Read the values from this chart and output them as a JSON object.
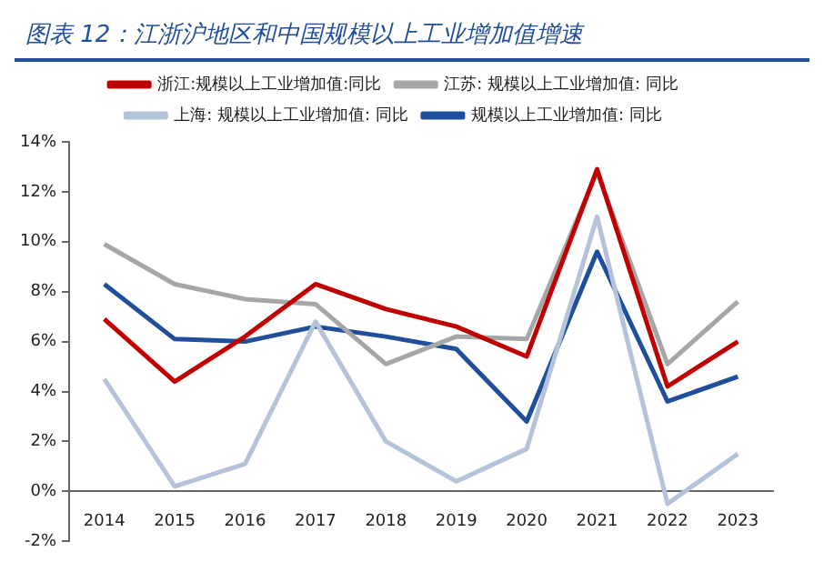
{
  "chart_data": {
    "type": "line",
    "title": "图表 12：江浙沪地区和中国规模以上工业增加值增速",
    "categories": [
      "2014",
      "2015",
      "2016",
      "2017",
      "2018",
      "2019",
      "2020",
      "2021",
      "2022",
      "2023"
    ],
    "series": [
      {
        "name": "浙江:规模以上工业增加值:同比",
        "color": "#c00000",
        "values": [
          6.9,
          4.4,
          6.2,
          8.3,
          7.3,
          6.6,
          5.4,
          12.9,
          4.2,
          6.0
        ]
      },
      {
        "name": "江苏: 规模以上工业增加值: 同比",
        "color": "#a6a6a6",
        "values": [
          9.9,
          8.3,
          7.7,
          7.5,
          5.1,
          6.2,
          6.1,
          12.8,
          5.1,
          7.6
        ]
      },
      {
        "name": "上海: 规模以上工业增加值: 同比",
        "color": "#b4c3d9",
        "values": [
          4.5,
          0.2,
          1.1,
          6.8,
          2.0,
          0.4,
          1.7,
          11.0,
          -0.5,
          1.5
        ]
      },
      {
        "name": "规模以上工业增加值: 同比",
        "color": "#1f4e9c",
        "values": [
          8.3,
          6.1,
          6.0,
          6.6,
          6.2,
          5.7,
          2.8,
          9.6,
          3.6,
          4.6
        ]
      }
    ],
    "ylim": [
      -2,
      14
    ],
    "yticks": [
      {
        "value": -2,
        "label": "-2%"
      },
      {
        "value": 0,
        "label": "0%"
      },
      {
        "value": 2,
        "label": "2%"
      },
      {
        "value": 4,
        "label": "4%"
      },
      {
        "value": 6,
        "label": "6%"
      },
      {
        "value": 8,
        "label": "8%"
      },
      {
        "value": 10,
        "label": "10%"
      },
      {
        "value": 12,
        "label": "12%"
      },
      {
        "value": 14,
        "label": "14%"
      }
    ],
    "grid": false,
    "legend": "top",
    "marker": "none",
    "line_style": "solid"
  }
}
